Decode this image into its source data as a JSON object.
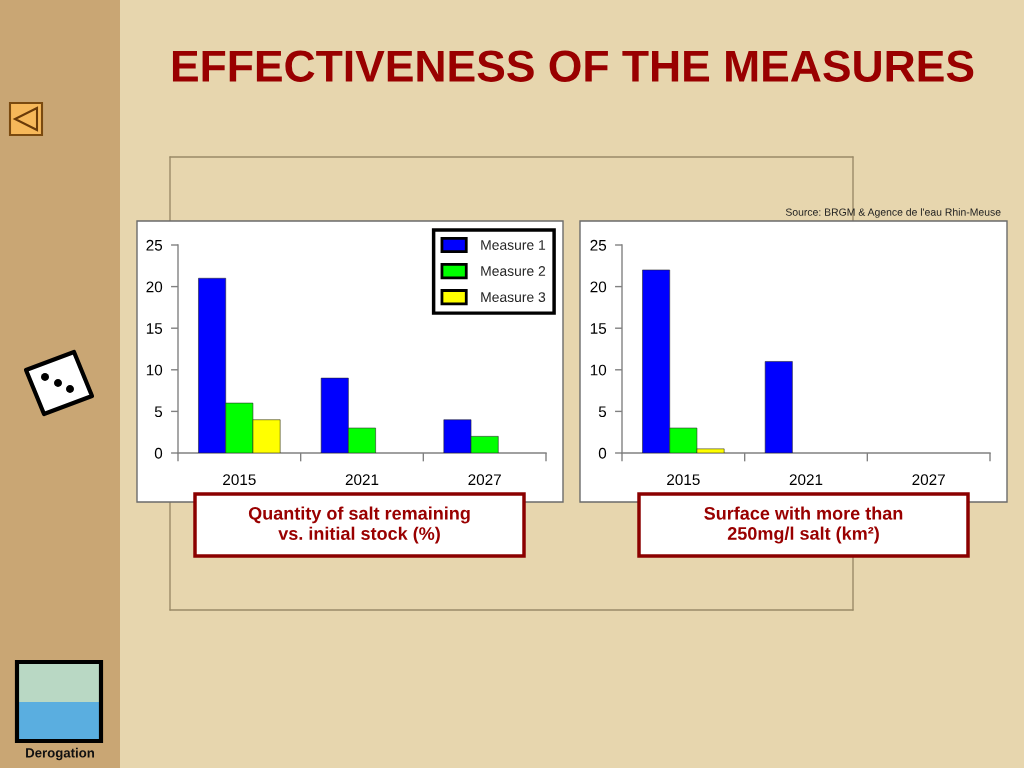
{
  "chart_data": [
    {
      "type": "other",
      "title": "EFFECTIVENESS OF THE MEASURES",
      "annotations": [
        "Derogation"
      ]
    },
    {
      "type": "bar",
      "title": "Quantity of salt remaining\nvs. initial stock (%)",
      "categories": [
        "2015",
        "2021",
        "2027"
      ],
      "series": [
        {
          "name": "Measure 1",
          "color": "#0000ff",
          "values": [
            21,
            9,
            4
          ]
        },
        {
          "name": "Measure 2",
          "color": "#00ff00",
          "values": [
            6,
            3,
            2
          ]
        },
        {
          "name": "Measure 3",
          "color": "#ffff00",
          "values": [
            4,
            null,
            null
          ]
        }
      ],
      "ylim": [
        0,
        25
      ],
      "yticks": [
        0,
        5,
        10,
        15,
        20,
        25
      ],
      "legend": "top right"
    },
    {
      "type": "bar",
      "title": "Surface with more than\n250mg/l salt (km²)",
      "categories": [
        "2015",
        "2021",
        "2027"
      ],
      "series": [
        {
          "color": "#0000ff",
          "values": [
            22,
            11,
            null
          ]
        },
        {
          "color": "#00ff00",
          "values": [
            3,
            null,
            null
          ]
        },
        {
          "color": "#ffff00",
          "values": [
            0.5,
            null,
            null
          ]
        }
      ],
      "ylim": [
        0,
        25
      ],
      "yticks": [
        0,
        5,
        10,
        15,
        20,
        25
      ],
      "annotations": [
        "Source: BRGM & Agence de l'eau Rhin-Meuse"
      ]
    }
  ]
}
